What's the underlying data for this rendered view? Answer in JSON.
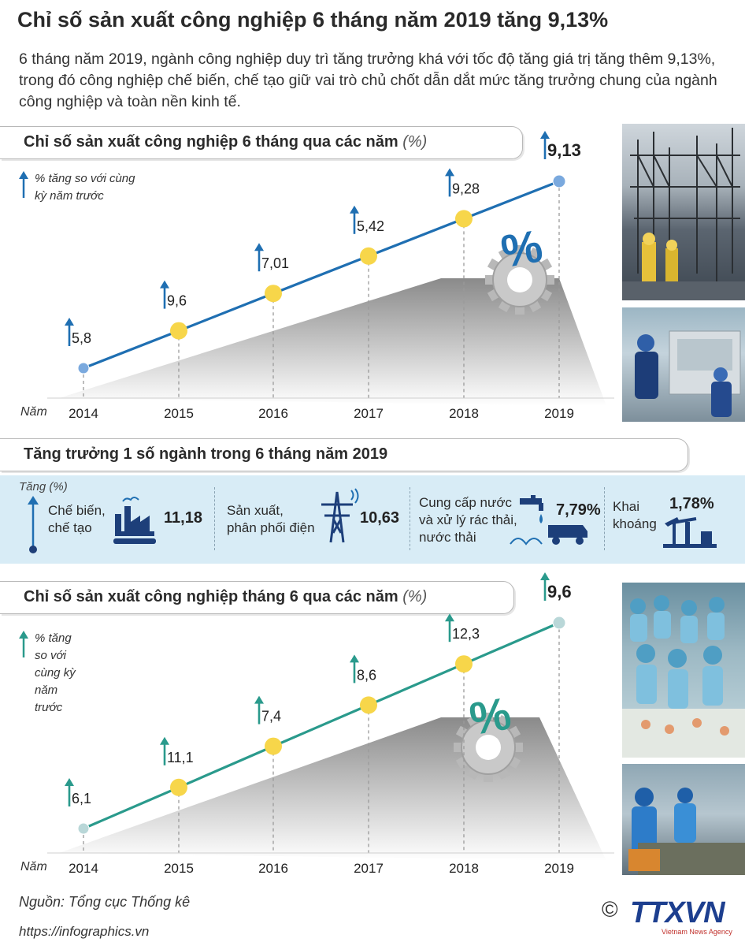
{
  "title": "Chỉ số sản xuất công nghiệp 6 tháng năm 2019 tăng 9,13%",
  "intro": "6 tháng  năm 2019, ngành công nghiệp duy trì tăng trưởng khá với tốc độ tăng giá trị tăng thêm 9,13%, trong đó công nghiệp chế biến, chế tạo giữ vai trò chủ chốt dẫn dắt mức tăng trưởng chung của ngành công nghiệp và toàn nền kinh tế.",
  "chart_data": [
    {
      "type": "line",
      "title": "Chỉ số sản xuất công nghiệp 6 tháng qua các năm",
      "unit": "(%)",
      "legend": "% tăng so với cùng kỳ năm trước",
      "xlabel": "Năm",
      "x": [
        "2014",
        "2015",
        "2016",
        "2017",
        "2018",
        "2019"
      ],
      "values": [
        5.8,
        9.6,
        7.01,
        5.42,
        9.28,
        9.13
      ],
      "value_labels": [
        "5,8",
        "9,6",
        "7,01",
        "5,42",
        "9,28",
        "9,13"
      ],
      "colors": {
        "line": "#1f6fb2",
        "arrow": "#1f6fb2",
        "point": "#f7d64a",
        "end_point": "#7aa9de"
      }
    },
    {
      "type": "line",
      "title": "Chỉ số sản xuất công nghiệp tháng 6 qua các năm",
      "unit": "(%)",
      "legend": "% tăng so với cùng kỳ năm trước",
      "xlabel": "Năm",
      "x": [
        "2014",
        "2015",
        "2016",
        "2017",
        "2018",
        "2019"
      ],
      "values": [
        6.1,
        11.1,
        7.4,
        8.6,
        12.3,
        9.6
      ],
      "value_labels": [
        "6,1",
        "11,1",
        "7,4",
        "8,6",
        "12,3",
        "9,6"
      ],
      "colors": {
        "line": "#2a9a8c",
        "arrow": "#2a9a8c",
        "point": "#f7d64a",
        "end_point": "#b9d7d8"
      }
    }
  ],
  "sectors": {
    "title": "Tăng trưởng 1 số ngành trong 6 tháng năm 2019",
    "axis_label": "Tăng (%)",
    "items": [
      {
        "label": "Chế biến,\nchế tạo",
        "value": "11,18",
        "icon": "factory-icon"
      },
      {
        "label": "Sản xuất,\nphân phối điện",
        "value": "10,63",
        "icon": "power-tower-icon"
      },
      {
        "label": "Cung cấp nước\nvà xử lý rác thải,\nnước thải",
        "value": "7,79%",
        "icon": "water-truck-icon"
      },
      {
        "label": "Khai\nkhoáng",
        "value": "1,78%",
        "icon": "oil-pump-icon"
      }
    ],
    "band_color": "#d8ecf6"
  },
  "gear_symbol": "%",
  "footer": {
    "source": "Nguồn: Tổng cục Thống kê",
    "url": "https://infographics.vn",
    "copyright": "©",
    "brand": "TTXVN",
    "brand_sub": "Vietnam News Agency"
  }
}
